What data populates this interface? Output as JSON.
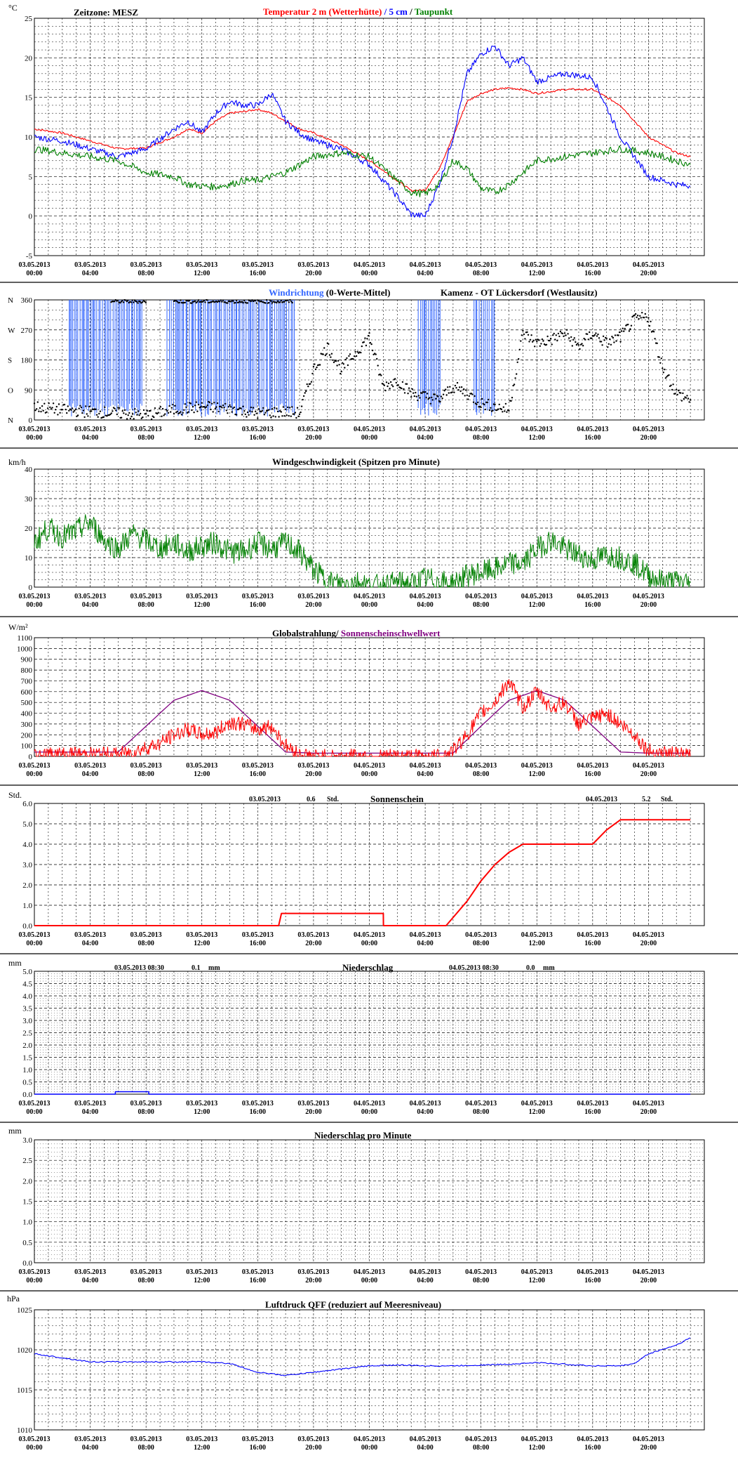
{
  "x_ticks": [
    [
      "03.05.2013",
      "00:00"
    ],
    [
      "03.05.2013",
      "04:00"
    ],
    [
      "03.05.2013",
      "08:00"
    ],
    [
      "03.05.2013",
      "12:00"
    ],
    [
      "03.05.2013",
      "16:00"
    ],
    [
      "03.05.2013",
      "20:00"
    ],
    [
      "04.05.2013",
      "00:00"
    ],
    [
      "04.05.2013",
      "04:00"
    ],
    [
      "04.05.2013",
      "08:00"
    ],
    [
      "04.05.2013",
      "12:00"
    ],
    [
      "04.05.2013",
      "16:00"
    ],
    [
      "04.05.2013",
      "20:00"
    ]
  ],
  "panels": {
    "temperature": {
      "unit": "°C",
      "zone_label": "Zeitzone: MESZ",
      "title_parts": [
        {
          "text": "Temperatur 2 m (Wetterhütte)",
          "color": "#ff0000"
        },
        {
          "text": " / ",
          "color": "#0000ff"
        },
        {
          "text": "5 cm",
          "color": "#0000ff"
        },
        {
          "text": " / ",
          "color": "#000000"
        },
        {
          "text": "Taupunkt",
          "color": "#008000"
        }
      ]
    },
    "wind_direction": {
      "title_parts": [
        {
          "text": "Windrichtung",
          "color": "#3366ff"
        },
        {
          "text": " (0-Werte-Mittel)",
          "color": "#000000"
        }
      ],
      "station": "Kamenz - OT Lückersdorf (Westlausitz)"
    },
    "wind_speed": {
      "unit": "km/h",
      "title": "Windgeschwindigkeit (Spitzen pro Minute)"
    },
    "radiation": {
      "unit": "W/m²",
      "title_parts": [
        {
          "text": "Globalstrahlung/",
          "color": "#000000"
        },
        {
          "text": " Sonnenscheinschwellwert",
          "color": "#800080"
        }
      ]
    },
    "sunshine": {
      "unit": "Std.",
      "title": "Sonnenschein",
      "day1": {
        "date": "03.05.2013",
        "value": "0.6",
        "unit": "Std."
      },
      "day2": {
        "date": "04.05.2013",
        "value": "5.2",
        "unit": "Std."
      }
    },
    "precip": {
      "unit": "mm",
      "title": "Niederschlag",
      "day1": {
        "date": "03.05.2013 08:30",
        "value": "0.1",
        "unit": "mm"
      },
      "day2": {
        "date": "04.05.2013 08:30",
        "value": "0.0",
        "unit": "mm"
      }
    },
    "precip_min": {
      "unit": "mm",
      "title": "Niederschlag pro Minute"
    },
    "pressure": {
      "unit": "hPa",
      "title": "Luftdruck QFF (reduziert auf Meeresniveau)"
    }
  },
  "chart_data": [
    {
      "type": "line",
      "id": "temperature",
      "x_hours": [
        0,
        2,
        4,
        6,
        8,
        10,
        11,
        12,
        13,
        14,
        15,
        16,
        17,
        18,
        19,
        20,
        22,
        24,
        26,
        27,
        28,
        29,
        30,
        31,
        32,
        33,
        34,
        35,
        36,
        38,
        40,
        42,
        44,
        46,
        47
      ],
      "ylim": [
        -5,
        25
      ],
      "yticks": [
        -5,
        0,
        5,
        10,
        15,
        20,
        25
      ],
      "grid": true,
      "series": [
        {
          "name": "Temperatur 2 m (Wetterhütte)",
          "color": "#ff0000",
          "values": [
            11,
            10.5,
            9.5,
            8.5,
            8.6,
            10,
            11,
            10.5,
            12,
            13,
            13.2,
            13.5,
            13,
            12,
            11,
            10.5,
            9,
            7,
            4.5,
            3.2,
            3.3,
            6,
            10,
            14.5,
            15.5,
            16,
            16.2,
            16,
            15.5,
            16,
            16,
            14,
            10,
            8,
            7.5
          ]
        },
        {
          "name": "5 cm",
          "color": "#0000ff",
          "values": [
            10,
            9.5,
            8.5,
            7.5,
            8.5,
            11,
            12,
            10.5,
            13,
            14.5,
            14,
            14,
            15.5,
            12,
            10.5,
            9.5,
            8.5,
            6.5,
            2.5,
            0.2,
            0,
            4,
            10,
            18,
            20.5,
            21.5,
            19,
            20,
            17,
            18,
            17.5,
            10,
            5,
            4,
            3.8
          ]
        },
        {
          "name": "Taupunkt",
          "color": "#008000",
          "values": [
            8.5,
            8,
            7.5,
            7,
            5.5,
            5,
            4,
            3.8,
            3.7,
            4,
            4.5,
            4.5,
            5,
            5.5,
            6.5,
            7.5,
            8,
            7.5,
            4.5,
            3,
            2.8,
            4,
            7,
            6,
            3.5,
            3,
            4,
            5.5,
            7,
            7.5,
            8,
            8.5,
            8,
            7,
            6.5
          ]
        }
      ]
    },
    {
      "type": "scatter",
      "id": "wind_direction",
      "ylim": [
        0,
        360
      ],
      "yticks": [
        0,
        90,
        180,
        270,
        360
      ],
      "ytick_letters": [
        "N",
        "O",
        "S",
        "W",
        "N"
      ],
      "grid": true,
      "x_hours": [
        0,
        2,
        4,
        6,
        8,
        10,
        12,
        14,
        16,
        18,
        19,
        20,
        21,
        22,
        23,
        24,
        25,
        26,
        27,
        28,
        29,
        30,
        31,
        32,
        33,
        34,
        35,
        36,
        37,
        38,
        39,
        40,
        41,
        42,
        43,
        44,
        45,
        46,
        47
      ],
      "values": [
        40,
        30,
        25,
        20,
        15,
        30,
        40,
        35,
        20,
        25,
        20,
        150,
        220,
        150,
        200,
        250,
        100,
        120,
        80,
        70,
        60,
        100,
        80,
        50,
        40,
        30,
        260,
        230,
        240,
        260,
        220,
        260,
        230,
        250,
        300,
        310,
        160,
        80,
        60
      ]
    },
    {
      "type": "line",
      "id": "wind_speed",
      "ylim": [
        0,
        40
      ],
      "yticks": [
        0,
        10,
        20,
        30,
        40
      ],
      "grid": true,
      "x_hours": [
        0,
        1,
        2,
        3,
        4,
        5,
        6,
        7,
        8,
        9,
        10,
        11,
        12,
        13,
        14,
        15,
        16,
        17,
        18,
        19,
        20,
        21,
        22,
        23,
        24,
        25,
        26,
        27,
        28,
        29,
        30,
        31,
        32,
        33,
        34,
        35,
        36,
        37,
        38,
        39,
        40,
        41,
        42,
        43,
        44,
        45,
        46,
        47
      ],
      "series": [
        {
          "color": "#008000",
          "values": [
            15,
            20,
            17,
            19,
            22,
            16,
            13,
            18,
            16,
            13,
            15,
            12,
            14,
            15,
            12,
            12,
            15,
            13,
            15,
            12,
            6,
            2,
            1,
            2,
            0.5,
            0.5,
            1.5,
            1,
            3,
            2,
            1,
            4,
            5,
            6,
            8,
            8,
            13,
            16,
            13,
            11,
            9,
            11,
            10,
            8,
            4,
            2,
            2,
            1.5
          ]
        }
      ]
    },
    {
      "type": "line",
      "id": "radiation",
      "ylim": [
        0,
        1100
      ],
      "yticks": [
        0,
        100,
        200,
        300,
        400,
        500,
        600,
        700,
        800,
        900,
        1000,
        1100
      ],
      "grid": true,
      "series": [
        {
          "name": "Globalstrahlung",
          "color": "#ff0000",
          "x_hours": [
            0,
            6,
            7,
            8,
            9,
            10,
            11,
            12,
            13,
            14,
            15,
            16,
            17,
            18,
            19,
            20,
            29,
            30,
            31,
            32,
            33,
            34,
            35,
            36,
            37,
            38,
            39,
            40,
            41,
            42,
            43,
            44,
            47
          ],
          "values": [
            20,
            20,
            40,
            80,
            120,
            200,
            250,
            200,
            220,
            320,
            300,
            250,
            280,
            100,
            20,
            0,
            0,
            50,
            200,
            400,
            500,
            700,
            450,
            600,
            450,
            500,
            300,
            350,
            400,
            300,
            200,
            50,
            0
          ]
        },
        {
          "name": "Sonnenscheinschwellwert",
          "color": "#800080",
          "x_hours": [
            0,
            6,
            8,
            10,
            12,
            14,
            16,
            18,
            20,
            30,
            32,
            34,
            36,
            38,
            40,
            42,
            44,
            47
          ],
          "values": [
            40,
            40,
            280,
            520,
            610,
            520,
            280,
            40,
            30,
            30,
            280,
            520,
            610,
            520,
            280,
            40,
            30,
            30
          ]
        }
      ]
    },
    {
      "type": "line",
      "id": "sunshine",
      "ylim": [
        0,
        6
      ],
      "yticks": [
        0,
        1,
        2,
        3,
        4,
        5,
        6
      ],
      "grid": true,
      "x_hours": [
        0,
        17.5,
        17.7,
        25,
        25.01,
        29.5,
        31,
        32,
        33,
        34,
        35,
        38,
        40,
        41,
        42,
        47
      ],
      "series": [
        {
          "color": "#ff0000",
          "values": [
            0,
            0,
            0.6,
            0.6,
            0,
            0,
            1.2,
            2.2,
            3.0,
            3.6,
            4.0,
            4.0,
            4.0,
            4.7,
            5.2,
            5.2
          ]
        }
      ]
    },
    {
      "type": "bar",
      "id": "precip",
      "ylim": [
        0,
        5
      ],
      "yticks": [
        0,
        0.5,
        1.0,
        1.5,
        2.0,
        2.5,
        3.0,
        3.5,
        4.0,
        4.5,
        5.0
      ],
      "grid": true,
      "x_hours": [
        0,
        5.8,
        5.8,
        8.2,
        8.2,
        47
      ],
      "values": [
        0,
        0,
        0.1,
        0.1,
        0,
        0
      ]
    },
    {
      "type": "bar",
      "id": "precip_min",
      "ylim": [
        0,
        3
      ],
      "yticks": [
        0,
        0.5,
        1.0,
        1.5,
        2.0,
        2.5,
        3.0
      ],
      "grid": true,
      "values": []
    },
    {
      "type": "line",
      "id": "pressure",
      "ylim": [
        1010,
        1025
      ],
      "yticks": [
        1010,
        1015,
        1020,
        1025
      ],
      "grid": true,
      "x_hours": [
        0,
        2,
        4,
        6,
        8,
        10,
        12,
        14,
        16,
        17,
        18,
        19,
        20,
        22,
        24,
        26,
        28,
        30,
        32,
        34,
        36,
        38,
        40,
        42,
        43,
        44,
        46,
        47
      ],
      "series": [
        {
          "color": "#0000ff",
          "values": [
            1019.5,
            1019,
            1018.5,
            1018.5,
            1018.5,
            1018.5,
            1018.5,
            1018.3,
            1017.2,
            1017,
            1016.8,
            1017,
            1017.2,
            1017.6,
            1018,
            1018.1,
            1018,
            1018,
            1018.1,
            1018.2,
            1018.4,
            1018.2,
            1018,
            1018,
            1018.3,
            1019.5,
            1020.6,
            1021.5
          ]
        }
      ]
    }
  ]
}
